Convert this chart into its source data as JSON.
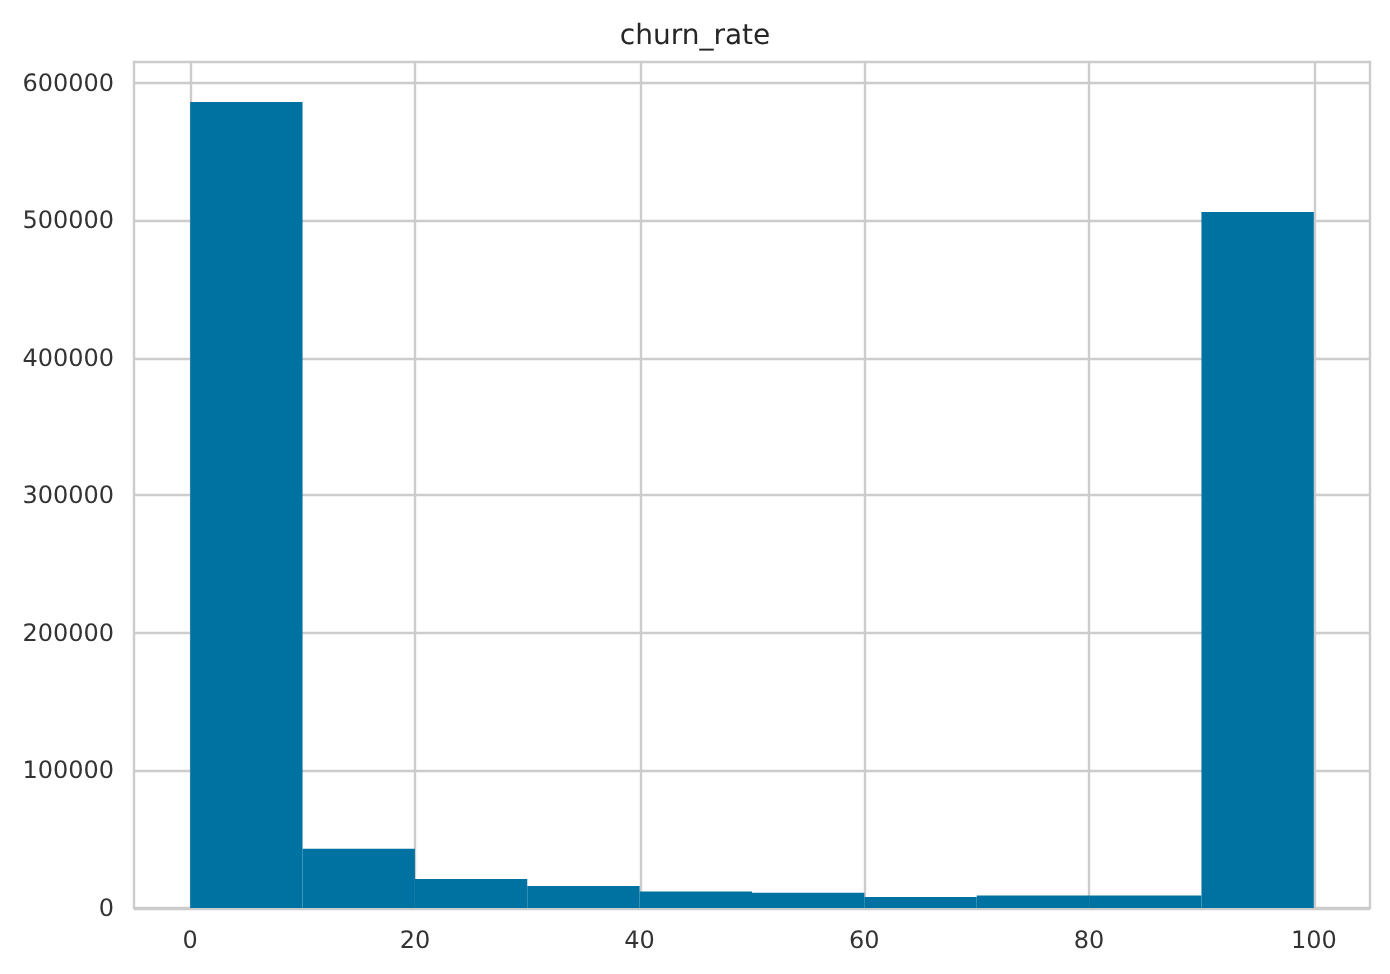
{
  "chart_data": {
    "type": "histogram",
    "title": "churn_rate",
    "bins": [
      0,
      10,
      20,
      30,
      40,
      50,
      60,
      70,
      80,
      90,
      100
    ],
    "values": [
      586000,
      43000,
      21000,
      16000,
      12000,
      11000,
      8000,
      9000,
      9000,
      506000
    ],
    "color": "#0072a1",
    "xlim": [
      -5,
      105
    ],
    "xticks": [
      0,
      20,
      40,
      60,
      80,
      100
    ],
    "ylim": [
      0,
      615000
    ],
    "yticks": [
      0,
      100000,
      200000,
      300000,
      400000,
      500000,
      600000
    ],
    "grid": true
  }
}
